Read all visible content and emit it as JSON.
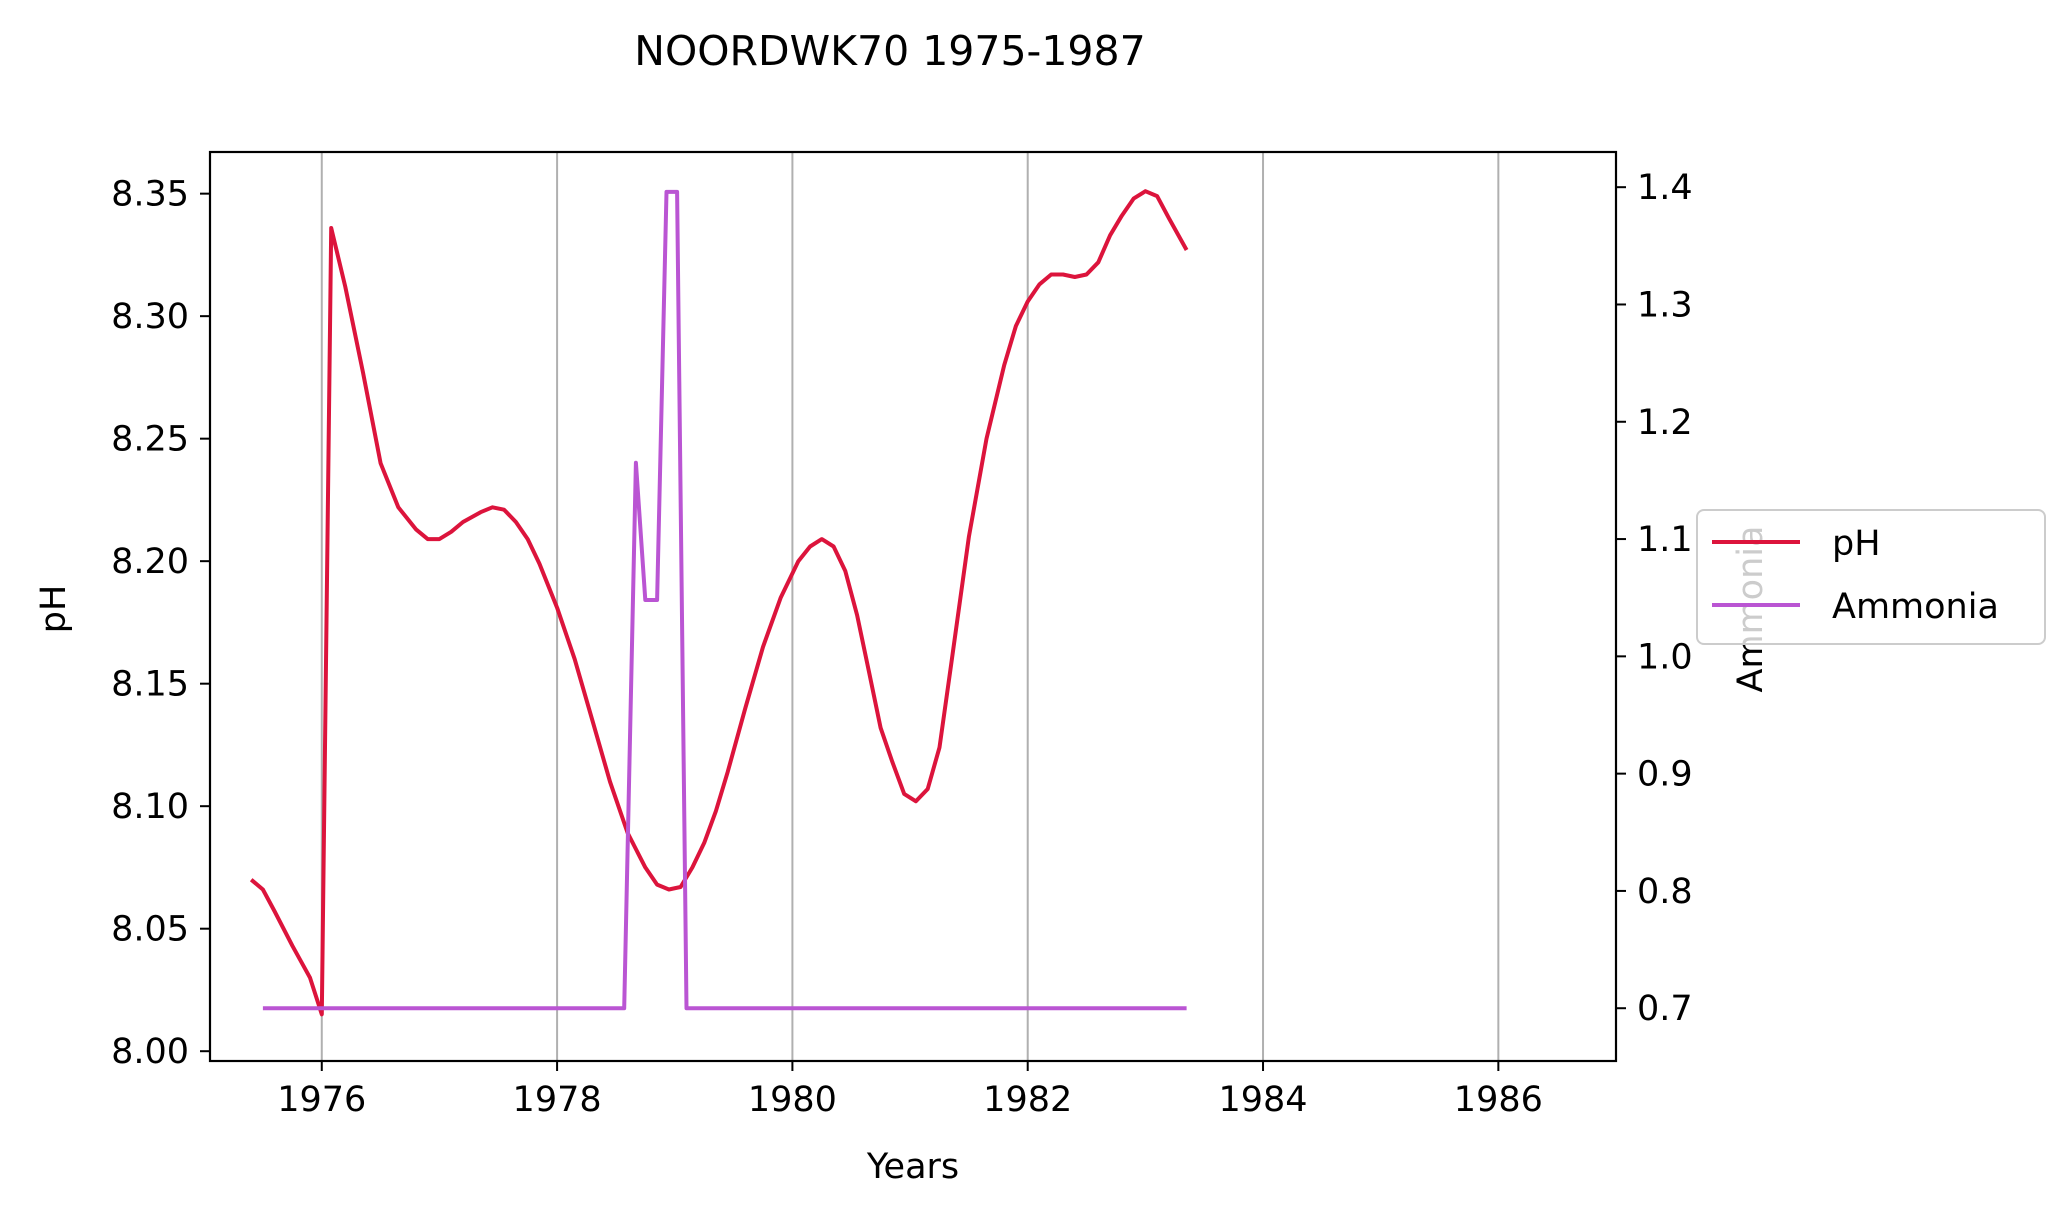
{
  "chart_data": {
    "type": "line",
    "title": "NOORDWK70 1975-1987",
    "xlabel": "Years",
    "ylabel": "pH",
    "y2label": "Ammonia",
    "xlim": [
      1975.05,
      1987.0
    ],
    "ylim": [
      7.996,
      8.367
    ],
    "y2lim": [
      0.655,
      1.43
    ],
    "x_ticks": [
      1976,
      1978,
      1980,
      1982,
      1984,
      1986
    ],
    "y_ticks": [
      "8.00",
      "8.05",
      "8.10",
      "8.15",
      "8.20",
      "8.25",
      "8.30",
      "8.35"
    ],
    "y2_ticks": [
      "0.7",
      "0.8",
      "0.9",
      "1.0",
      "1.1",
      "1.2",
      "1.3",
      "1.4"
    ],
    "grid": "vertical",
    "legend": {
      "position": "right",
      "entries": [
        "pH",
        "Ammonia"
      ]
    },
    "series": [
      {
        "name": "pH",
        "axis": "left",
        "color": "#dc143c",
        "x": [
          1975.4,
          1975.5,
          1975.6,
          1975.75,
          1975.9,
          1976.0,
          1976.08,
          1976.2,
          1976.35,
          1976.5,
          1976.65,
          1976.8,
          1976.9,
          1977.0,
          1977.1,
          1977.2,
          1977.35,
          1977.45,
          1977.55,
          1977.65,
          1977.75,
          1977.85,
          1978.0,
          1978.15,
          1978.3,
          1978.45,
          1978.6,
          1978.75,
          1978.85,
          1978.95,
          1979.05,
          1979.15,
          1979.25,
          1979.35,
          1979.45,
          1979.6,
          1979.75,
          1979.9,
          1980.05,
          1980.15,
          1980.25,
          1980.35,
          1980.45,
          1980.55,
          1980.65,
          1980.75,
          1980.85,
          1980.95,
          1981.05,
          1981.15,
          1981.25,
          1981.35,
          1981.5,
          1981.65,
          1981.8,
          1981.9,
          1982.0,
          1982.1,
          1982.2,
          1982.3,
          1982.4,
          1982.5,
          1982.6,
          1982.7,
          1982.8,
          1982.9,
          1983.0,
          1983.1,
          1983.2,
          1983.35
        ],
        "values": [
          8.07,
          8.066,
          8.057,
          8.043,
          8.03,
          8.015,
          8.336,
          8.312,
          8.277,
          8.24,
          8.222,
          8.213,
          8.209,
          8.209,
          8.212,
          8.216,
          8.22,
          8.222,
          8.221,
          8.216,
          8.209,
          8.199,
          8.181,
          8.16,
          8.135,
          8.11,
          8.089,
          8.075,
          8.068,
          8.066,
          8.067,
          8.075,
          8.085,
          8.098,
          8.114,
          8.14,
          8.165,
          8.185,
          8.2,
          8.206,
          8.209,
          8.206,
          8.196,
          8.178,
          8.155,
          8.132,
          8.118,
          8.105,
          8.102,
          8.107,
          8.124,
          8.158,
          8.21,
          8.25,
          8.28,
          8.296,
          8.306,
          8.313,
          8.317,
          8.317,
          8.316,
          8.317,
          8.322,
          8.333,
          8.341,
          8.348,
          8.351,
          8.349,
          8.34,
          8.327
        ]
      },
      {
        "name": "Ammonia",
        "axis": "right",
        "color": "#ba55d3",
        "x": [
          1975.5,
          1975.75,
          1976.0,
          1978.0,
          1978.57,
          1978.67,
          1978.75,
          1978.85,
          1978.93,
          1979.02,
          1979.1,
          1979.5,
          1980.0,
          1982.0,
          1983.35
        ],
        "values": [
          0.7,
          0.7,
          0.7,
          0.7,
          0.7,
          1.165,
          1.048,
          1.048,
          1.396,
          1.396,
          0.7,
          0.7,
          0.7,
          0.7,
          0.7
        ]
      }
    ]
  }
}
